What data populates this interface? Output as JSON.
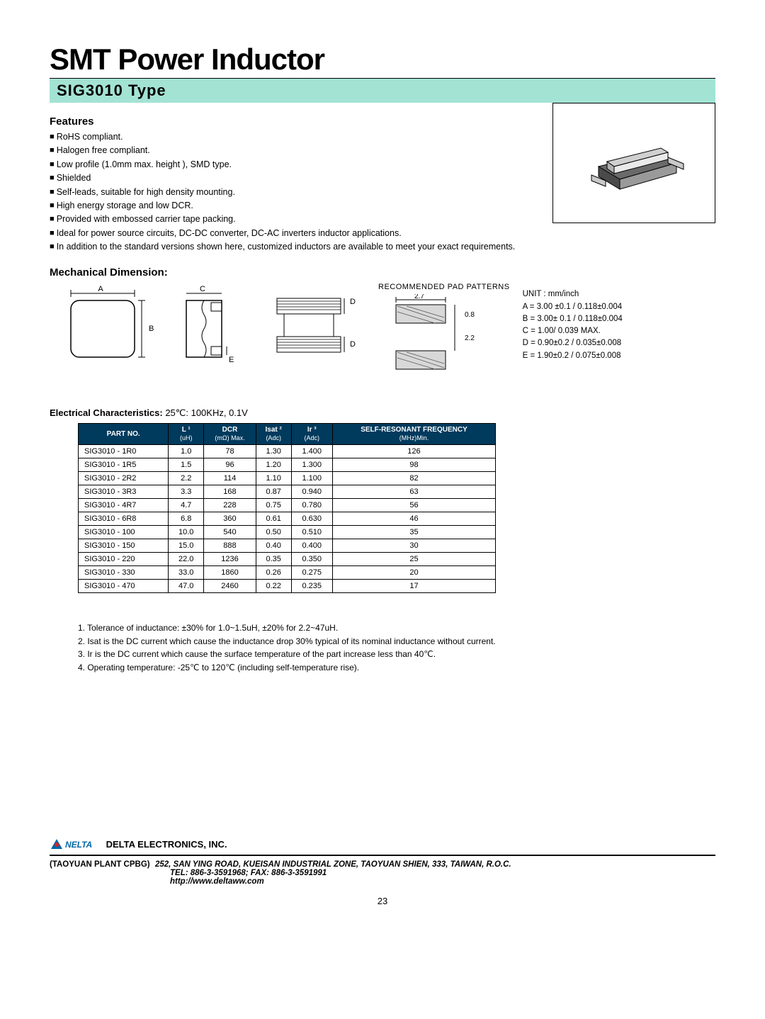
{
  "title": "SMT Power Inductor",
  "subtitle": "SIG3010 Type",
  "features_heading": "Features",
  "features": [
    "RoHS compliant.",
    "Halogen  free compliant.",
    "Low  profile  (1.0mm max. height  ), SMD type.",
    "Shielded",
    "Self-leads,  suitable  for high  density  mounting.",
    "High  energy  storage and  low  DCR.",
    "Provided  with  embossed carrier  tape  packing.",
    "Ideal  for  power source  circuits,  DC-DC  converter, DC-AC inverters inductor  applications.",
    "In  addition  to the  standard  versions shown here, customized   inductors  are available  to  meet your  exact  requirements."
  ],
  "mech_heading": "Mechanical Dimension:",
  "pad_title": "RECOMMENDED  PAD  PATTERNS",
  "pad_dims": {
    "w": "2.7",
    "h1": "0.8",
    "h2": "2.2"
  },
  "dim_unit": "UNIT : mm/inch",
  "dims": {
    "A": "A = 3.00 ±0.1 / 0.118±0.004",
    "B": "B = 3.00± 0.1 / 0.118±0.004",
    "C": "C = 1.00/ 0.039 MAX.",
    "D": "D = 0.90±0.2 / 0.035±0.008",
    "E": "E = 1.90±0.2 / 0.075±0.008"
  },
  "echar_heading": "Electrical Characteristics:",
  "echar_cond": " 25℃: 100KHz, 0.1V",
  "table": {
    "headers": [
      {
        "t": "PART NO.",
        "s": ""
      },
      {
        "t": "L ¹",
        "s": "(uH)"
      },
      {
        "t": "DCR",
        "s": "(mΩ) Max."
      },
      {
        "t": "Isat ²",
        "s": "(Adc)"
      },
      {
        "t": "Ir ³",
        "s": "(Adc)"
      },
      {
        "t": "SELF-RESONANT FREQUENCY",
        "s": "(MHz)Min."
      }
    ],
    "rows": [
      [
        "SIG3010 - 1R0",
        "1.0",
        "78",
        "1.30",
        "1.400",
        "126"
      ],
      [
        "SIG3010 - 1R5",
        "1.5",
        "96",
        "1.20",
        "1.300",
        "98"
      ],
      [
        "SIG3010 - 2R2",
        "2.2",
        "114",
        "1.10",
        "1.100",
        "82"
      ],
      [
        "SIG3010 - 3R3",
        "3.3",
        "168",
        "0.87",
        "0.940",
        "63"
      ],
      [
        "SIG3010 - 4R7",
        "4.7",
        "228",
        "0.75",
        "0.780",
        "56"
      ],
      [
        "SIG3010 - 6R8",
        "6.8",
        "360",
        "0.61",
        "0.630",
        "46"
      ],
      [
        "SIG3010 - 100",
        "10.0",
        "540",
        "0.50",
        "0.510",
        "35"
      ],
      [
        "SIG3010 - 150",
        "15.0",
        "888",
        "0.40",
        "0.400",
        "30"
      ],
      [
        "SIG3010 - 220",
        "22.0",
        "1236",
        "0.35",
        "0.350",
        "25"
      ],
      [
        "SIG3010 - 330",
        "33.0",
        "1860",
        "0.26",
        "0.275",
        "20"
      ],
      [
        "SIG3010 - 470",
        "47.0",
        "2460",
        "0.22",
        "0.235",
        "17"
      ]
    ]
  },
  "notes": [
    "1. Tolerance  of  inductance: ±30%  for  1.0~1.5uH, ±20%  for  2.2~47uH.",
    "2. Isat  is  the  DC current which  cause  the  inductance drop  30%  typical  of  its nominal  inductance  without  current.",
    "3. Ir  is  the  DC  current  which  cause  the  surface  temperature  of  the  part  increase  less  than  40℃.",
    "4. Operating  temperature:  -25℃  to  120℃   (including  self-temperature  rise)."
  ],
  "footer": {
    "company": "DELTA ELECTRONICS, INC.",
    "plant": "(TAOYUAN PLANT CPBG)",
    "addr1": "252, SAN YING ROAD, KUEISAN INDUSTRIAL ZONE, TAOYUAN SHIEN, 333, TAIWAN, R.O.C.",
    "addr2": "TEL: 886-3-3591968; FAX: 886-3-3591991",
    "addr3": "http://www.deltaww.com"
  },
  "page": "23",
  "colors": {
    "band": "#a3e3d4",
    "th": "#003a5d"
  }
}
